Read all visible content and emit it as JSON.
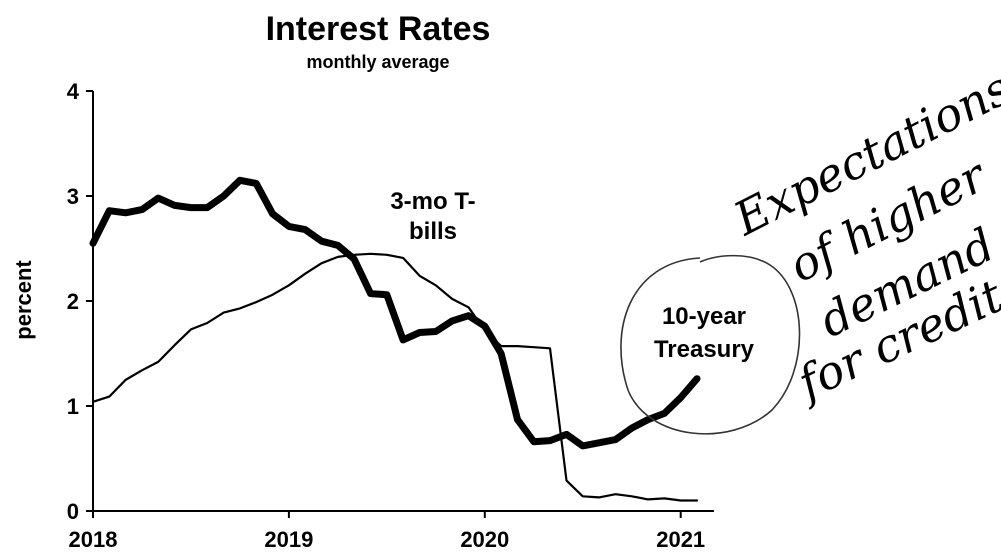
{
  "chart_data": {
    "type": "line",
    "title": "Interest Rates",
    "subtitle": "monthly average",
    "ylabel": "percent",
    "xlabel": "",
    "xlim": [
      2018.0,
      2021.17
    ],
    "ylim": [
      0,
      4
    ],
    "x_ticks": [
      "2018",
      "2019",
      "2020",
      "2021"
    ],
    "y_ticks": [
      "0",
      "1",
      "2",
      "3",
      "4"
    ],
    "grid": false,
    "series": [
      {
        "name": "3-mo T-bills",
        "label_lines": [
          "3-mo T-",
          "bills"
        ],
        "style": "thin",
        "color": "#000000",
        "x": [
          2018.0,
          2018.083,
          2018.167,
          2018.25,
          2018.333,
          2018.417,
          2018.5,
          2018.583,
          2018.667,
          2018.75,
          2018.833,
          2018.917,
          2019.0,
          2019.083,
          2019.167,
          2019.25,
          2019.333,
          2019.417,
          2019.5,
          2019.583,
          2019.667,
          2019.75,
          2019.833,
          2019.917,
          2020.0,
          2020.083,
          2020.167,
          2020.25,
          2020.333,
          2020.417,
          2020.5,
          2020.583,
          2020.667,
          2020.75,
          2020.833,
          2020.917,
          2021.0,
          2021.083
        ],
        "y": [
          1.04,
          1.09,
          1.25,
          1.34,
          1.42,
          1.58,
          1.73,
          1.79,
          1.89,
          1.93,
          1.99,
          2.06,
          2.15,
          2.26,
          2.36,
          2.42,
          2.44,
          2.45,
          2.44,
          2.41,
          2.24,
          2.15,
          2.02,
          1.94,
          1.72,
          1.57,
          1.57,
          1.56,
          1.55,
          0.29,
          0.14,
          0.13,
          0.16,
          0.14,
          0.11,
          0.12,
          0.1,
          0.1
        ]
      },
      {
        "name": "10-year Treasury",
        "label_lines": [
          "10-year",
          "Treasury"
        ],
        "style": "thick",
        "color": "#000000",
        "x": [
          2018.0,
          2018.083,
          2018.167,
          2018.25,
          2018.333,
          2018.417,
          2018.5,
          2018.583,
          2018.667,
          2018.75,
          2018.833,
          2018.917,
          2019.0,
          2019.083,
          2019.167,
          2019.25,
          2019.333,
          2019.417,
          2019.5,
          2019.583,
          2019.667,
          2019.75,
          2019.833,
          2019.917,
          2020.0,
          2020.083,
          2020.167,
          2020.25,
          2020.333,
          2020.417,
          2020.5,
          2020.583,
          2020.667,
          2020.75,
          2020.833,
          2020.917,
          2021.0,
          2021.083
        ],
        "y": [
          2.55,
          2.86,
          2.84,
          2.87,
          2.98,
          2.91,
          2.89,
          2.89,
          3.0,
          3.15,
          3.12,
          2.83,
          2.71,
          2.68,
          2.57,
          2.53,
          2.4,
          2.07,
          2.06,
          1.63,
          1.7,
          1.71,
          1.81,
          1.86,
          1.76,
          1.5,
          0.87,
          0.66,
          0.67,
          0.73,
          0.62,
          0.65,
          0.68,
          0.79,
          0.87,
          0.93,
          1.08,
          1.26
        ]
      }
    ],
    "annotation": {
      "handwritten_lines": [
        "Expectations",
        "of higher",
        "demand",
        "for credit"
      ],
      "circled_label": "10-year Treasury"
    }
  }
}
